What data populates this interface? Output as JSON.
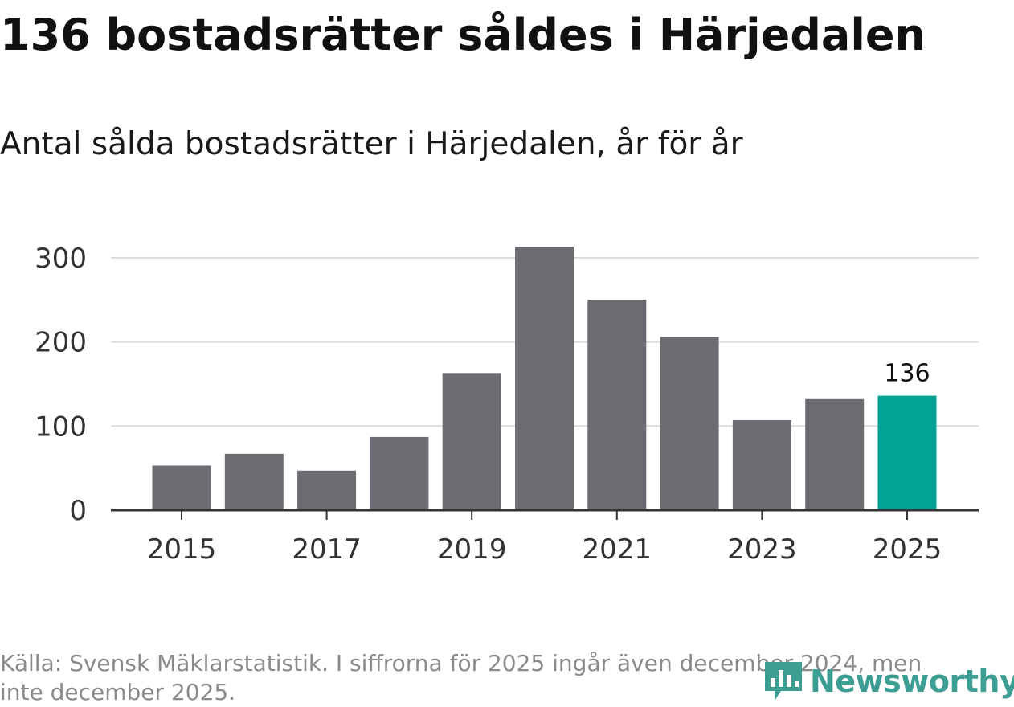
{
  "chart_data": {
    "type": "bar",
    "title": "136 bostadsrätter såldes i Härjedalen",
    "subtitle": "Antal sålda bostadsrätter i Härjedalen, år för år",
    "categories": [
      "2015",
      "2016",
      "2017",
      "2018",
      "2019",
      "2020",
      "2021",
      "2022",
      "2023",
      "2024",
      "2025"
    ],
    "values": [
      53,
      67,
      47,
      87,
      163,
      313,
      250,
      206,
      107,
      132,
      136
    ],
    "ylim": [
      0,
      320
    ],
    "yticks": [
      0,
      100,
      200,
      300
    ],
    "xtick_labels": [
      "2015",
      "2017",
      "2019",
      "2021",
      "2023",
      "2025"
    ],
    "xlabel": "",
    "ylabel": "",
    "highlight_category": "2025",
    "highlight_label": "136",
    "bar_color": "#6d6c72",
    "highlight_color": "#00a396",
    "grid": true
  },
  "footer": {
    "source": "Källa: Svensk Mäklarstatistik. I siffrorna för 2025 ingår även december 2024, men inte december 2025.",
    "brand": "Newsworthy",
    "brand_icon": "newsworthy-logo-icon",
    "brand_color": "#3d9e94"
  }
}
